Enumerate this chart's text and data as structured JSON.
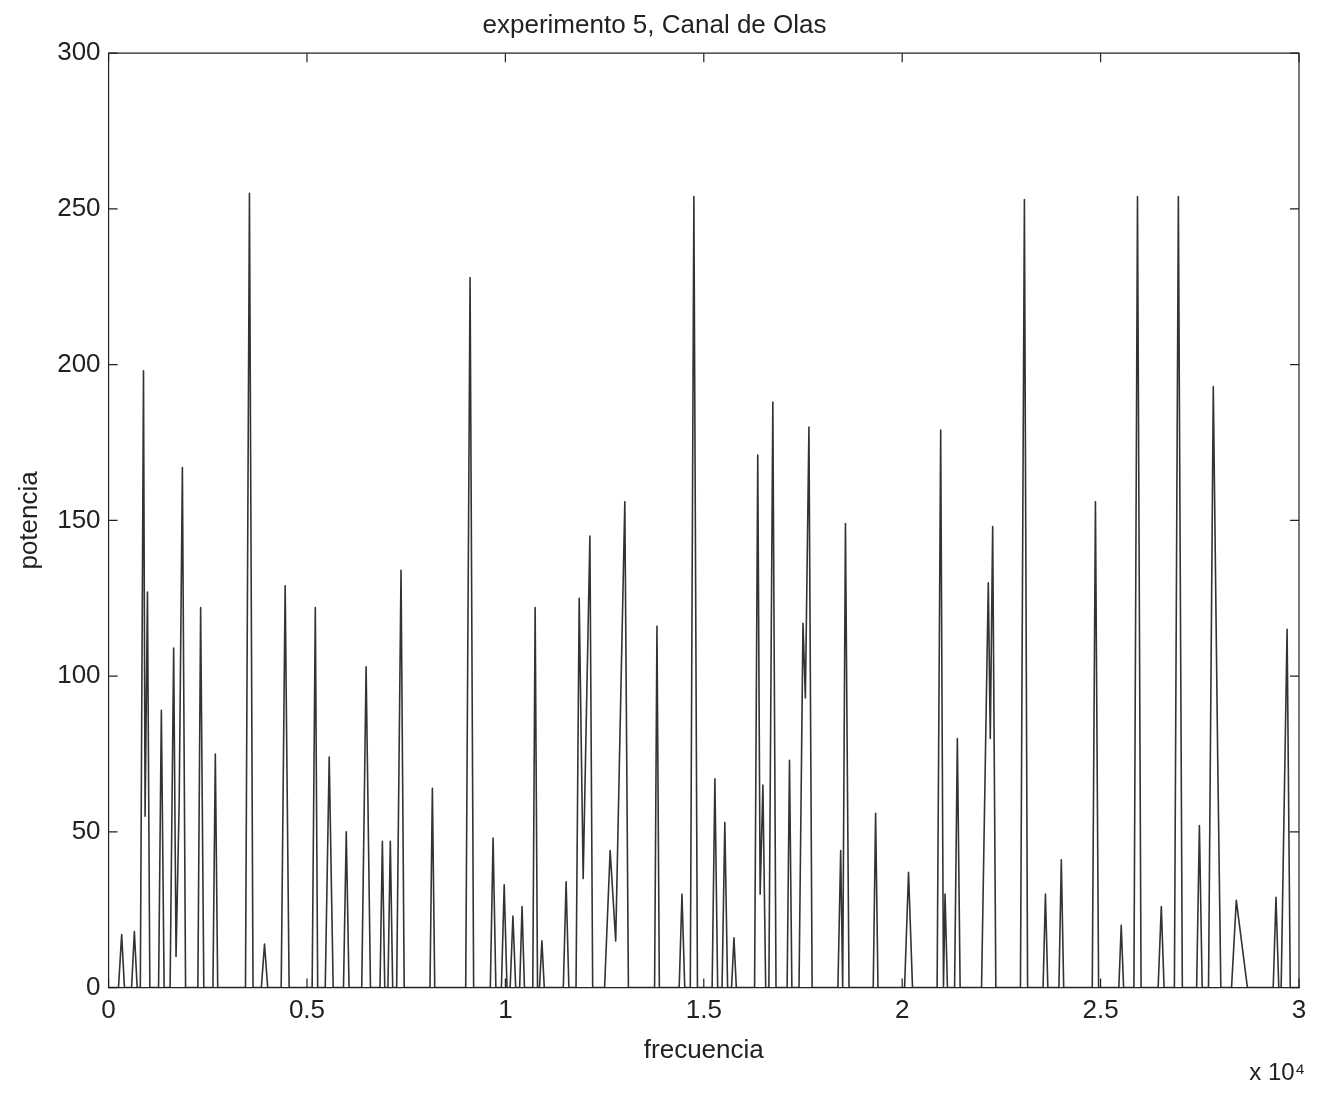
{
  "chart_data": {
    "type": "line",
    "title": "experimento 5, Canal de Olas",
    "xlabel": "frecuencia",
    "ylabel": "potencia",
    "annotations": [
      "x 10⁴"
    ],
    "xlim": [
      0,
      3
    ],
    "xticks": [
      0,
      0.5,
      1,
      1.5,
      2,
      2.5,
      3
    ],
    "ylim": [
      0,
      300
    ],
    "yticks": [
      0,
      50,
      100,
      150,
      200,
      250,
      300
    ],
    "marker": "none",
    "line_style": "solid",
    "series": [
      {
        "color": "#333333",
        "x": [
          0,
          0.025,
          0.033,
          0.04,
          0.058,
          0.065,
          0.072,
          0.08,
          0.088,
          0.092,
          0.098,
          0.104,
          0.126,
          0.133,
          0.14,
          0.155,
          0.164,
          0.17,
          0.178,
          0.186,
          0.194,
          0.225,
          0.232,
          0.24,
          0.263,
          0.269,
          0.275,
          0.345,
          0.355,
          0.364,
          0.385,
          0.393,
          0.401,
          0.435,
          0.445,
          0.455,
          0.513,
          0.521,
          0.527,
          0.546,
          0.556,
          0.566,
          0.592,
          0.599,
          0.606,
          0.638,
          0.649,
          0.66,
          0.684,
          0.69,
          0.696,
          0.704,
          0.71,
          0.716,
          0.726,
          0.737,
          0.745,
          0.81,
          0.816,
          0.822,
          0.9,
          0.911,
          0.92,
          0.962,
          0.969,
          0.976,
          0.99,
          0.997,
          1.004,
          1.012,
          1.019,
          1.026,
          1.036,
          1.042,
          1.048,
          1.069,
          1.075,
          1.081,
          1.086,
          1.092,
          1.098,
          1.146,
          1.153,
          1.16,
          1.178,
          1.186,
          1.196,
          1.213,
          1.22,
          1.25,
          1.264,
          1.278,
          1.301,
          1.31,
          1.376,
          1.382,
          1.388,
          1.438,
          1.445,
          1.452,
          1.466,
          1.475,
          1.484,
          1.521,
          1.528,
          1.535,
          1.546,
          1.553,
          1.56,
          1.57,
          1.576,
          1.582,
          1.628,
          1.636,
          1.642,
          1.649,
          1.656,
          1.664,
          1.674,
          1.682,
          1.71,
          1.716,
          1.722,
          1.74,
          1.75,
          1.756,
          1.765,
          1.773,
          1.838,
          1.845,
          1.85,
          1.857,
          1.866,
          1.927,
          1.933,
          1.939,
          2.006,
          2.016,
          2.026,
          2.088,
          2.097,
          2.104,
          2.108,
          2.114,
          2.132,
          2.139,
          2.146,
          2.2,
          2.217,
          2.222,
          2.228,
          2.236,
          2.298,
          2.308,
          2.316,
          2.355,
          2.361,
          2.367,
          2.395,
          2.401,
          2.407,
          2.479,
          2.487,
          2.495,
          2.546,
          2.552,
          2.558,
          2.584,
          2.593,
          2.602,
          2.645,
          2.653,
          2.66,
          2.686,
          2.696,
          2.706,
          2.742,
          2.749,
          2.756,
          2.772,
          2.784,
          2.795,
          2.803,
          2.83,
          2.842,
          2.855,
          2.87,
          2.935,
          2.942,
          2.949,
          2.955,
          2.97,
          2.978,
          3
        ],
        "values": [
          0,
          0,
          17,
          0,
          0,
          18,
          0,
          0,
          198,
          55,
          127,
          0,
          0,
          89,
          0,
          0,
          109,
          10,
          60,
          167,
          0,
          0,
          122,
          0,
          0,
          75,
          0,
          0,
          255,
          0,
          0,
          14,
          0,
          0,
          129,
          0,
          0,
          122,
          0,
          0,
          74,
          0,
          0,
          50,
          0,
          0,
          103,
          0,
          0,
          47,
          0,
          0,
          47,
          0,
          0,
          134,
          0,
          0,
          64,
          0,
          0,
          228,
          0,
          0,
          48,
          0,
          0,
          33,
          0,
          0,
          23,
          0,
          0,
          26,
          0,
          0,
          122,
          0,
          0,
          15,
          0,
          0,
          34,
          0,
          0,
          125,
          35,
          145,
          0,
          0,
          44,
          15,
          156,
          0,
          0,
          116,
          0,
          0,
          30,
          0,
          0,
          254,
          0,
          0,
          67,
          0,
          0,
          53,
          0,
          0,
          16,
          0,
          0,
          171,
          30,
          65,
          0,
          0,
          188,
          0,
          0,
          73,
          0,
          0,
          117,
          93,
          180,
          0,
          0,
          44,
          0,
          149,
          0,
          0,
          56,
          0,
          0,
          37,
          0,
          0,
          179,
          0,
          30,
          0,
          0,
          80,
          0,
          0,
          130,
          80,
          148,
          0,
          0,
          253,
          0,
          0,
          30,
          0,
          0,
          41,
          0,
          0,
          156,
          0,
          0,
          20,
          0,
          0,
          254,
          0,
          0,
          26,
          0,
          0,
          254,
          0,
          0,
          52,
          0,
          0,
          193,
          75,
          0,
          0,
          28,
          15,
          0,
          0,
          29,
          0,
          0,
          115,
          0,
          0
        ]
      }
    ]
  }
}
